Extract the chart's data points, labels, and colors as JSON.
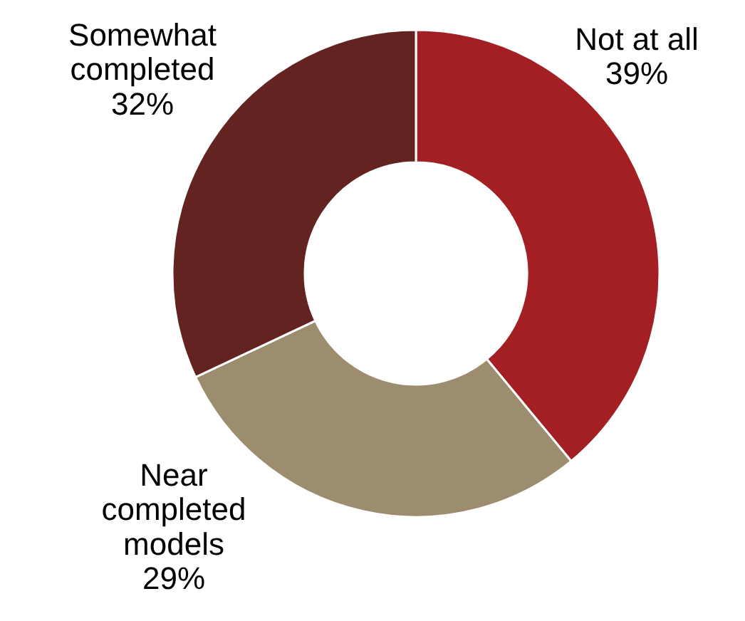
{
  "chart_data": {
    "type": "donut",
    "categories": [
      "Not at all",
      "Near completed models",
      "Somewhat completed"
    ],
    "values": [
      39,
      29,
      32
    ],
    "colors": [
      "#a31f23",
      "#9b8d6d",
      "#622321"
    ],
    "value_labels": [
      "39%",
      "29%",
      "32%"
    ],
    "legend": false
  }
}
